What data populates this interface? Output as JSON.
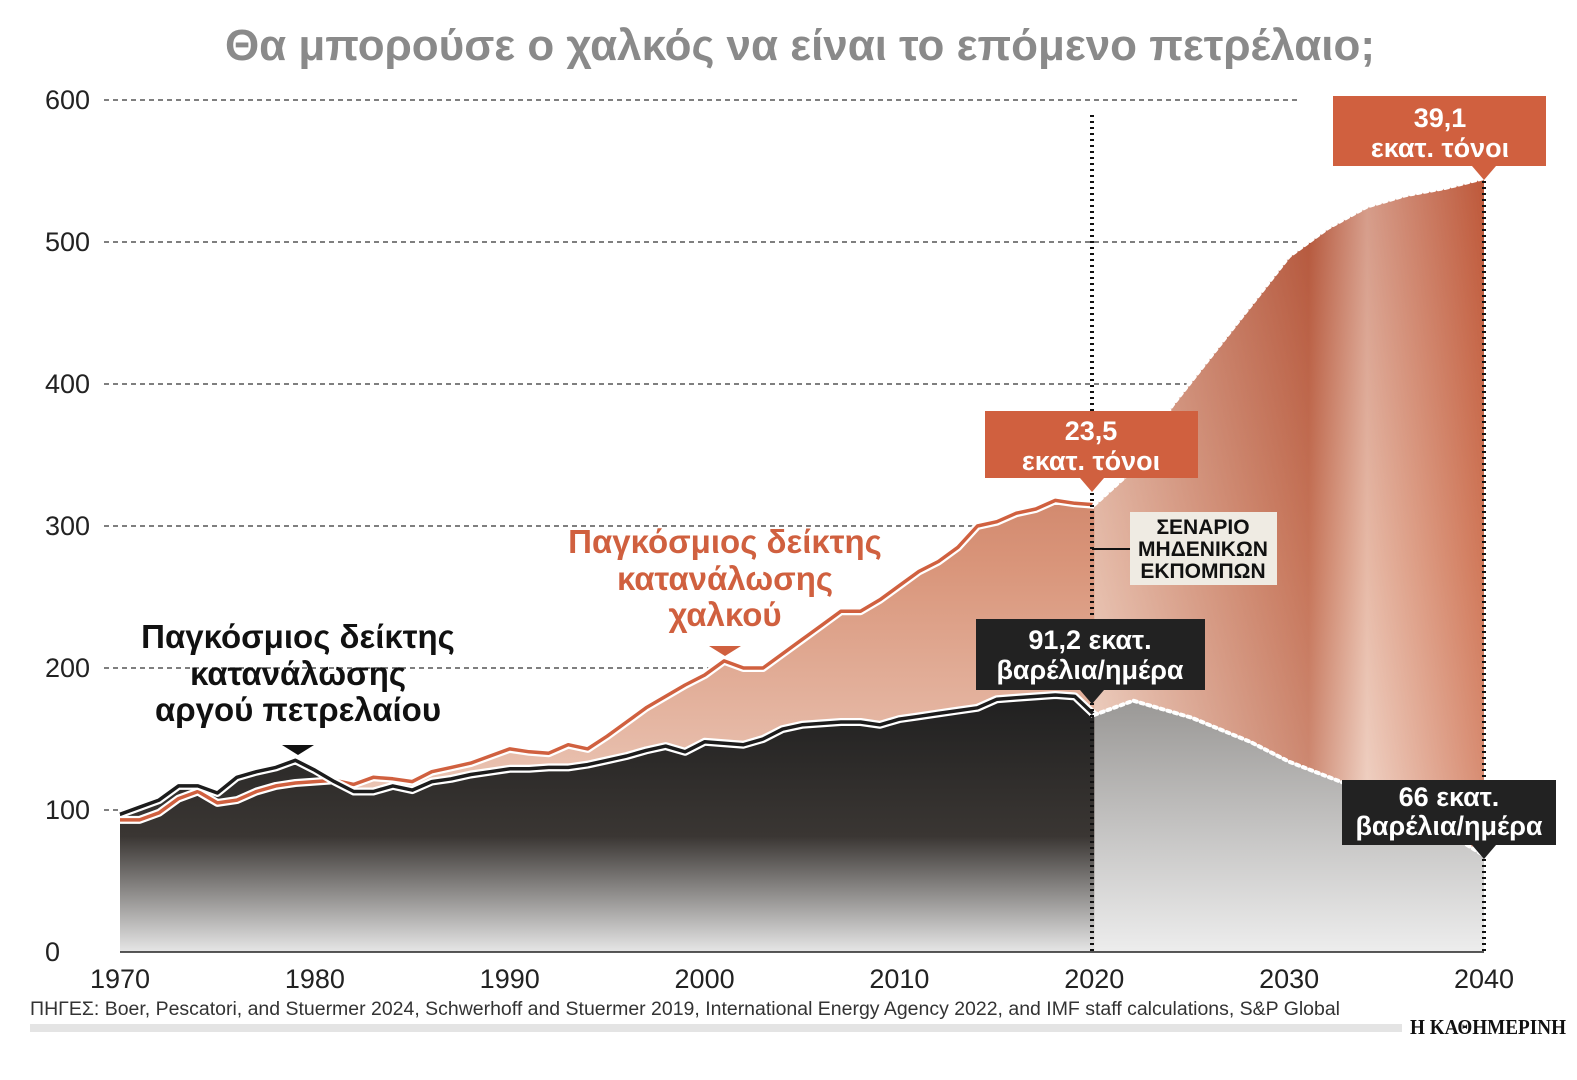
{
  "chart_data": {
    "type": "area",
    "title": "Θα μπορούσε ο χαλκός να είναι το επόμενο πετρέλαιο;",
    "xlabel": "",
    "ylabel": "",
    "xlim": [
      1970,
      2040
    ],
    "ylim": [
      0,
      600
    ],
    "x_ticks": [
      "1970",
      "1980",
      "1990",
      "2000",
      "2010",
      "2020",
      "2030",
      "2040"
    ],
    "y_ticks": [
      "0",
      "100",
      "200",
      "300",
      "400",
      "500",
      "600"
    ],
    "grid": "horizontal dashed",
    "projection_start": 2020,
    "series": [
      {
        "name": "Παγκόσμιος δείκτης κατανάλωσης χαλκού",
        "label_lines": [
          "Παγκόσμιος δείκτης",
          "κατανάλωσης",
          "χαλκού"
        ],
        "color": "#d0603f",
        "historical": {
          "x": [
            1970,
            1971,
            1972,
            1973,
            1974,
            1975,
            1976,
            1977,
            1978,
            1979,
            1980,
            1981,
            1982,
            1983,
            1984,
            1985,
            1986,
            1987,
            1988,
            1989,
            1990,
            1991,
            1992,
            1993,
            1994,
            1995,
            1996,
            1997,
            1998,
            1999,
            2000,
            2001,
            2002,
            2003,
            2004,
            2005,
            2006,
            2007,
            2008,
            2009,
            2010,
            2011,
            2012,
            2013,
            2014,
            2015,
            2016,
            2017,
            2018,
            2019,
            2020
          ],
          "y": [
            93,
            93,
            98,
            108,
            113,
            105,
            107,
            113,
            117,
            119,
            120,
            121,
            118,
            123,
            122,
            120,
            127,
            130,
            133,
            138,
            143,
            141,
            140,
            146,
            143,
            152,
            162,
            172,
            180,
            188,
            195,
            205,
            200,
            200,
            210,
            220,
            230,
            240,
            240,
            248,
            258,
            268,
            275,
            285,
            300,
            303,
            309,
            312,
            318,
            316,
            315
          ]
        },
        "projection": {
          "x": [
            2020,
            2022,
            2024,
            2026,
            2028,
            2030,
            2032,
            2034,
            2036,
            2038,
            2040
          ],
          "y": [
            315,
            340,
            385,
            420,
            455,
            490,
            510,
            525,
            533,
            538,
            545
          ]
        }
      },
      {
        "name": "Παγκόσμιος δείκτης κατανάλωσης αργού πετρελαίου",
        "label_lines": [
          "Παγκόσμιος δείκτης",
          "κατανάλωσης",
          "αργού πετρελαίου"
        ],
        "color": "#1c1c1c",
        "historical": {
          "x": [
            1970,
            1971,
            1972,
            1973,
            1974,
            1975,
            1976,
            1977,
            1978,
            1979,
            1980,
            1981,
            1982,
            1983,
            1984,
            1985,
            1986,
            1987,
            1988,
            1989,
            1990,
            1991,
            1992,
            1993,
            1994,
            1995,
            1996,
            1997,
            1998,
            1999,
            2000,
            2001,
            2002,
            2003,
            2004,
            2005,
            2006,
            2007,
            2008,
            2009,
            2010,
            2011,
            2012,
            2013,
            2014,
            2015,
            2016,
            2017,
            2018,
            2019,
            2020
          ],
          "y": [
            97,
            102,
            107,
            117,
            117,
            112,
            123,
            127,
            130,
            135,
            128,
            120,
            113,
            113,
            117,
            114,
            120,
            122,
            125,
            127,
            129,
            129,
            130,
            130,
            132,
            135,
            138,
            142,
            145,
            141,
            148,
            147,
            146,
            150,
            157,
            160,
            161,
            162,
            162,
            160,
            164,
            166,
            168,
            170,
            172,
            178,
            179,
            180,
            181,
            180,
            167
          ]
        },
        "projection": {
          "x": [
            2020,
            2022,
            2025,
            2028,
            2030,
            2033,
            2035,
            2038,
            2040
          ],
          "y": [
            167,
            177,
            165,
            148,
            134,
            118,
            107,
            85,
            68
          ]
        }
      }
    ],
    "annotations": {
      "copper_2020": [
        "23,5",
        "εκατ. τόνοι"
      ],
      "copper_2040": [
        "39,1",
        "εκατ. τόνοι"
      ],
      "oil_2020": [
        "91,2 εκατ.",
        "βαρέλια/ημέρα"
      ],
      "oil_2040": [
        "66 εκατ.",
        "βαρέλια/ημέρα"
      ],
      "scenario": [
        "ΣΕΝΑΡΙΟ",
        "ΜΗΔΕΝΙΚΩΝ",
        "ΕΚΠΟΜΠΩΝ"
      ]
    },
    "colors": {
      "copper": "#d0603f",
      "oil": "#1c1c1c",
      "title": "#8a8a8a",
      "scenario_box": "#efebe3"
    }
  },
  "source": "ΠΗΓΕΣ: Boer, Pescatori, and Stuermer 2024, Schwerhoff and Stuermer 2019, International Energy Agency 2022, and IMF staff calculations, S&P Global",
  "publisher": "Η ΚΑΘΗΜΕΡΙΝΗ"
}
